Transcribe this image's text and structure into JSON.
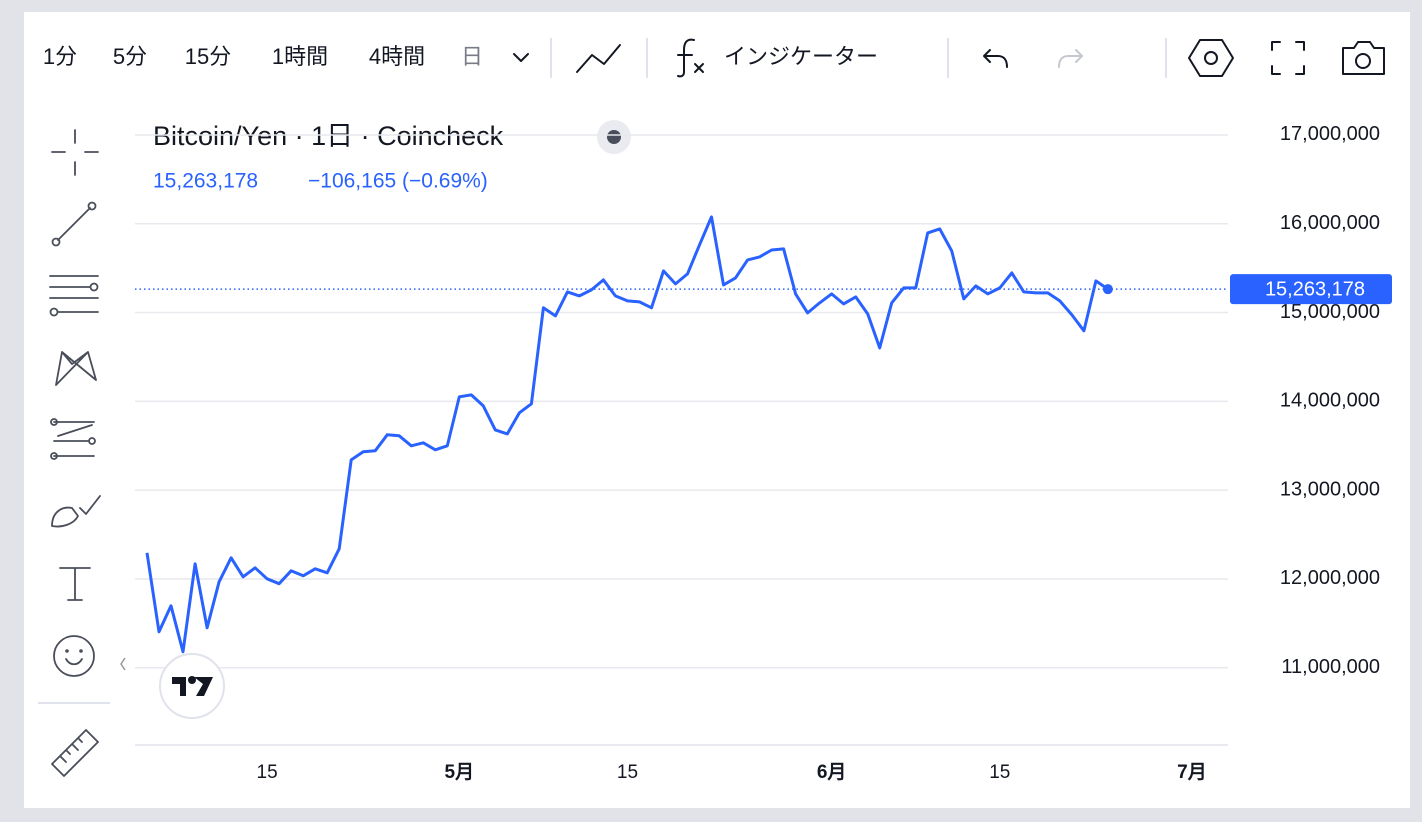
{
  "toolbar": {
    "intervals": [
      "1分",
      "5分",
      "15分",
      "1時間",
      "4時間",
      "日"
    ],
    "indicators": "インジケーター"
  },
  "chart_data": {
    "type": "line",
    "title": "Bitcoin/Yen · 1日 · Coincheck",
    "last_price": "15,263,178",
    "change": "−106,165 (−0.69%)",
    "color": "#2962ff",
    "x": [
      "04-05",
      "04-06",
      "04-07",
      "04-08",
      "04-09",
      "04-10",
      "04-11",
      "04-12",
      "04-13",
      "04-14",
      "04-15",
      "04-16",
      "04-17",
      "04-18",
      "04-19",
      "04-20",
      "04-21",
      "04-22",
      "04-23",
      "04-24",
      "04-25",
      "04-26",
      "04-27",
      "04-28",
      "04-29",
      "04-30",
      "05-01",
      "05-02",
      "05-03",
      "05-04",
      "05-05",
      "05-06",
      "05-07",
      "05-08",
      "05-09",
      "05-10",
      "05-11",
      "05-12",
      "05-13",
      "05-14",
      "05-15",
      "05-16",
      "05-17",
      "05-18",
      "05-19",
      "05-20",
      "05-21",
      "05-22",
      "05-23",
      "05-24",
      "05-25",
      "05-26",
      "05-27",
      "05-28",
      "05-29",
      "05-30",
      "05-31",
      "06-01",
      "06-02",
      "06-03",
      "06-04",
      "06-05",
      "06-06",
      "06-07",
      "06-08",
      "06-09",
      "06-10",
      "06-11",
      "06-12",
      "06-13",
      "06-14",
      "06-15",
      "06-16",
      "06-17",
      "06-18",
      "06-19",
      "06-20",
      "06-21",
      "06-22",
      "06-23",
      "06-24"
    ],
    "values": [
      12295000,
      11405000,
      11698000,
      11180000,
      12171000,
      11450000,
      11968000,
      12238000,
      12024000,
      12126000,
      12002000,
      11946000,
      12092000,
      12036000,
      12114000,
      12069000,
      12340000,
      13341000,
      13432000,
      13443000,
      13623000,
      13612000,
      13499000,
      13533000,
      13454000,
      13499000,
      14051000,
      14073000,
      13949000,
      13679000,
      13634000,
      13871000,
      13972000,
      15053000,
      14962000,
      15233000,
      15188000,
      15255000,
      15368000,
      15188000,
      15131000,
      15120000,
      15053000,
      15469000,
      15323000,
      15435000,
      15762000,
      16077000,
      15311000,
      15390000,
      15593000,
      15627000,
      15705000,
      15717000,
      15210000,
      14996000,
      15109000,
      15210000,
      15098000,
      15176000,
      14985000,
      14602000,
      15109000,
      15278000,
      15278000,
      15897000,
      15942000,
      15694000,
      15154000,
      15300000,
      15210000,
      15278000,
      15447000,
      15233000,
      15221000,
      15221000,
      15131000,
      14974000,
      14794000,
      15356000,
      15263178
    ],
    "xlim": [
      "04-04",
      "07-04"
    ],
    "xticks": [
      {
        "value": "04-15",
        "label": "15"
      },
      {
        "value": "05-01",
        "label": "5月"
      },
      {
        "value": "05-15",
        "label": "15"
      },
      {
        "value": "06-01",
        "label": "6月"
      },
      {
        "value": "06-15",
        "label": "15"
      },
      {
        "value": "07-01",
        "label": "7月"
      }
    ],
    "ylim": [
      10130000,
      17450000
    ],
    "yticks": [
      {
        "value": 11000000,
        "label": "11,000,000"
      },
      {
        "value": 12000000,
        "label": "12,000,000"
      },
      {
        "value": 13000000,
        "label": "13,000,000"
      },
      {
        "value": 14000000,
        "label": "14,000,000"
      },
      {
        "value": 15000000,
        "label": "15,000,000"
      },
      {
        "value": 16000000,
        "label": "16,000,000"
      },
      {
        "value": 17000000,
        "label": "17,000,000"
      }
    ],
    "grid": true
  }
}
